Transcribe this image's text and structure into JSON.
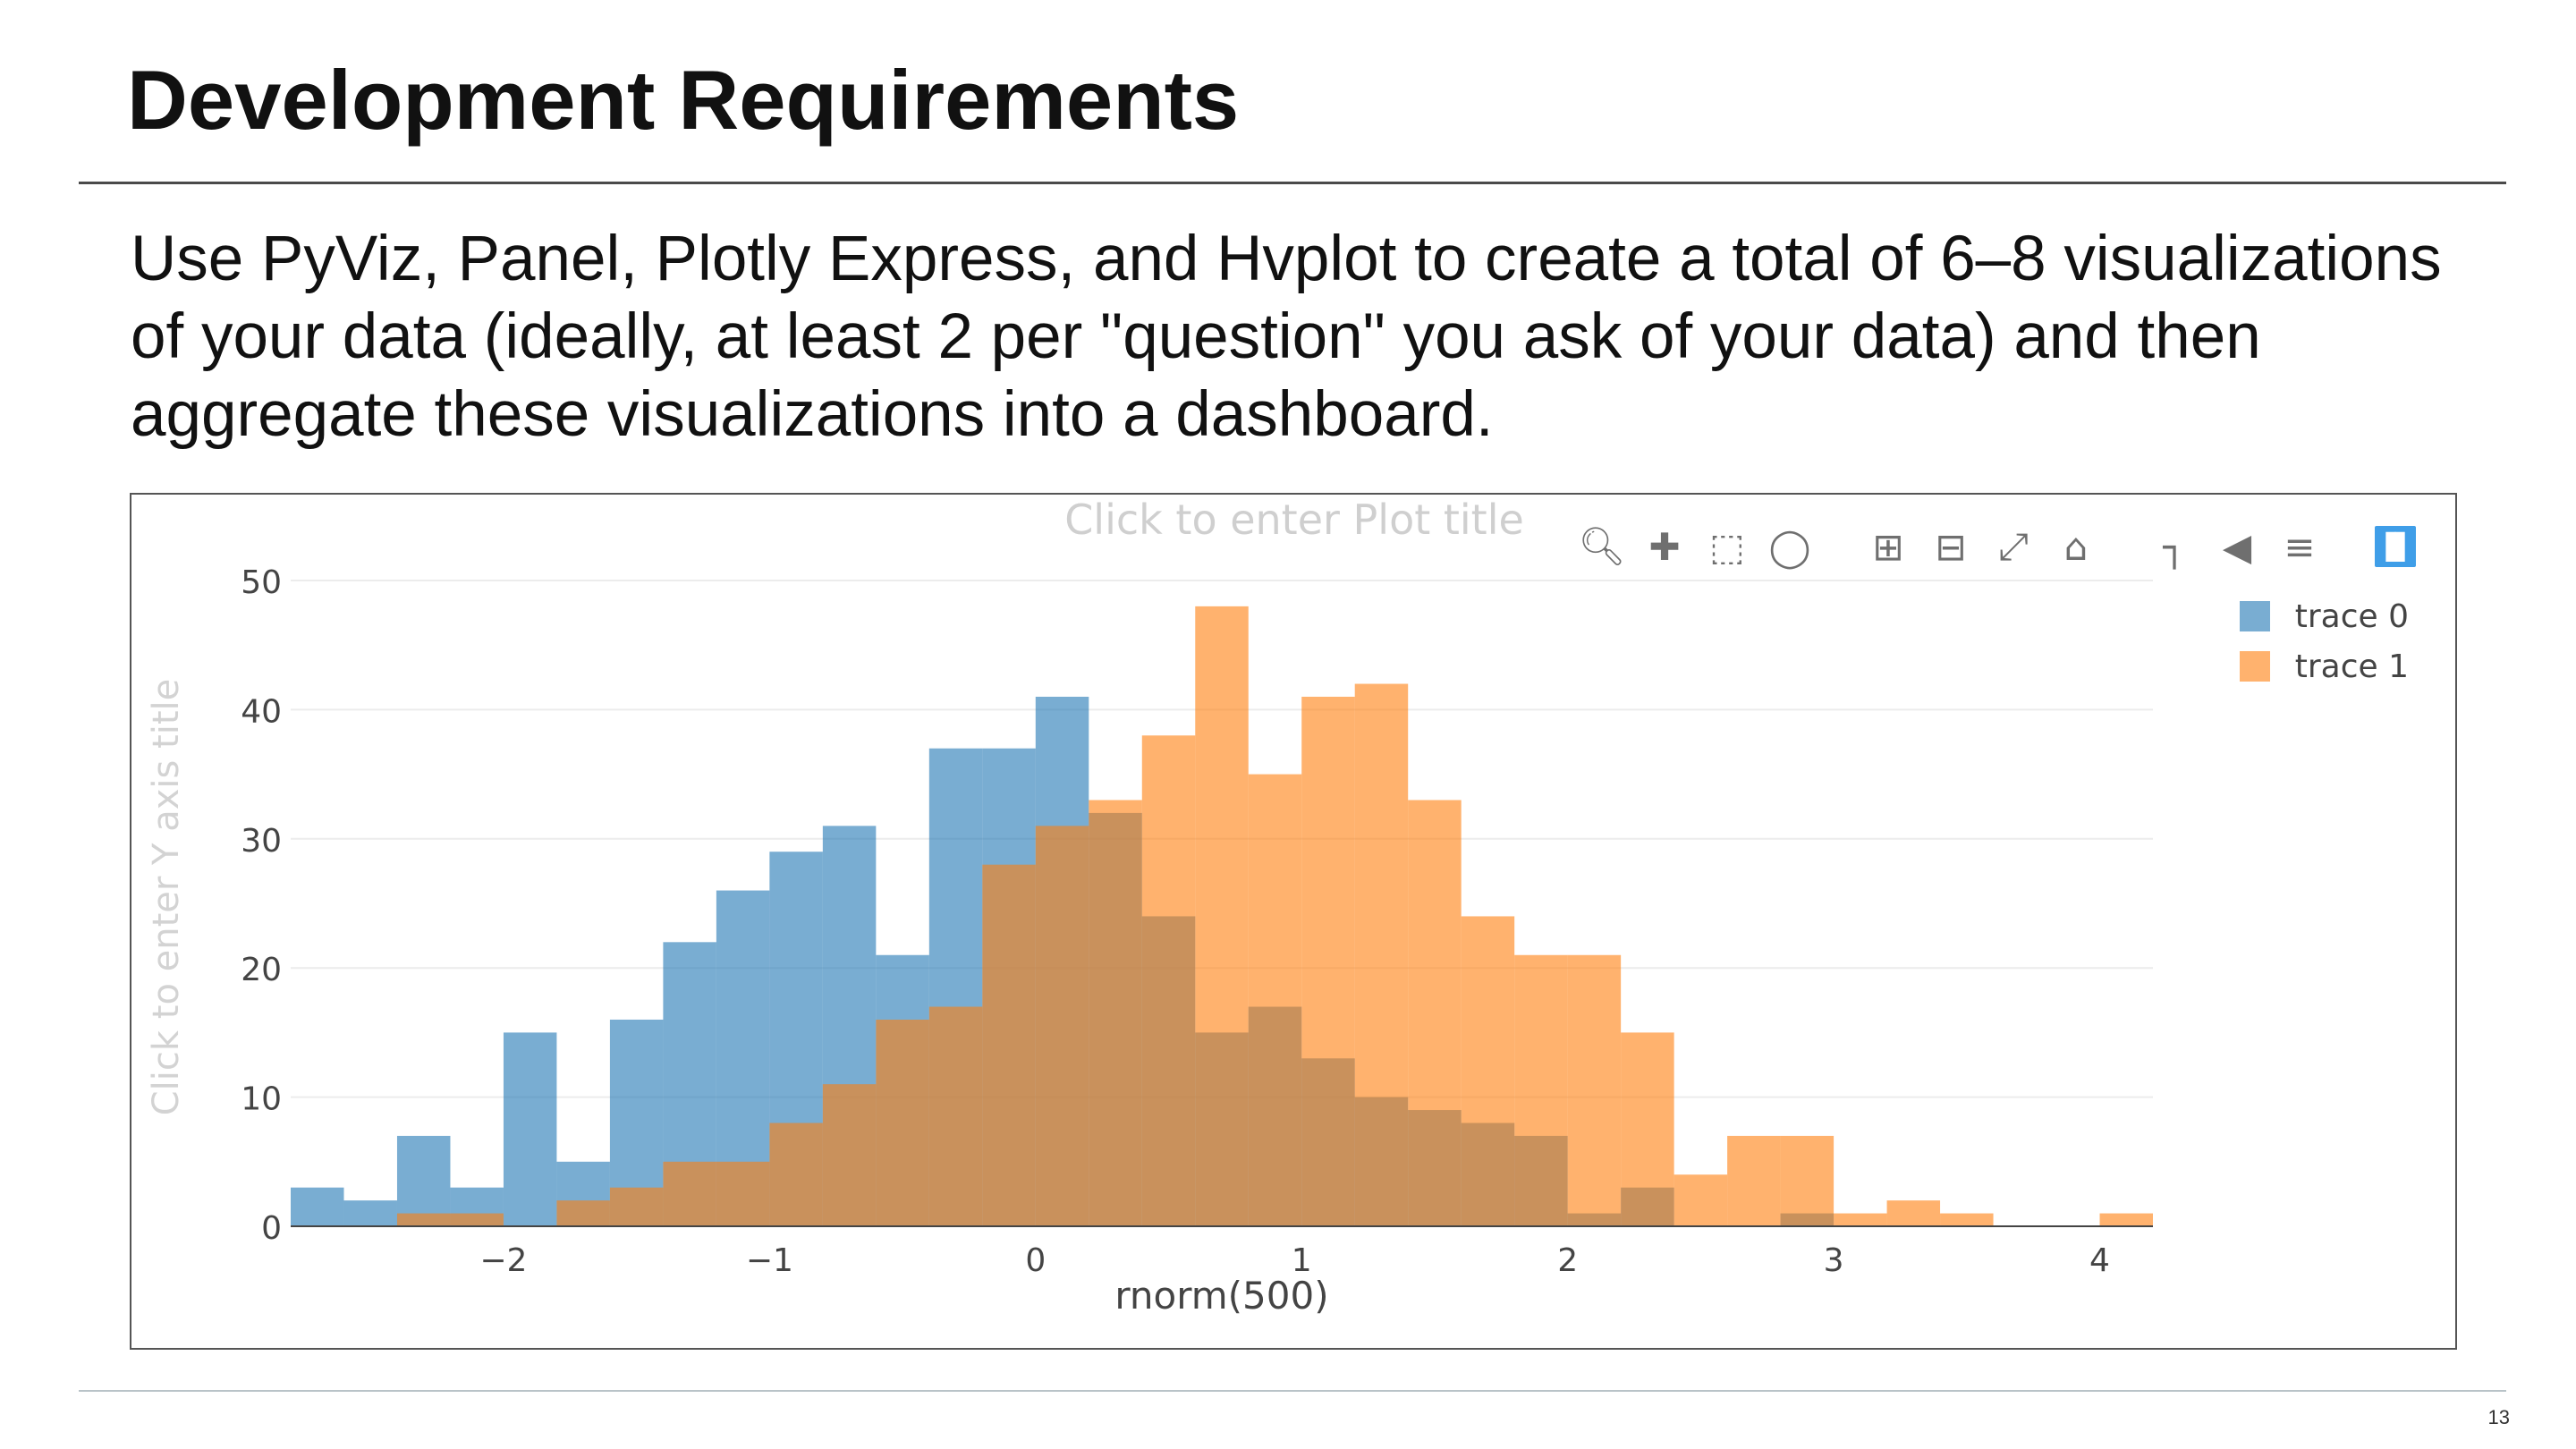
{
  "slide": {
    "title": "Development Requirements",
    "body": "Use PyViz, Panel, Plotly Express, and Hvplot to create a total of 6–8 visualizations of your data (ideally, at least 2 per \"question\" you ask of your data) and then aggregate these visualizations into a dashboard.",
    "page_number": "13"
  },
  "modebar": {
    "icons": [
      "zoom-icon",
      "pan-icon",
      "box-select-icon",
      "lasso-select-icon",
      "zoom-in-icon",
      "zoom-out-icon",
      "autoscale-icon",
      "reset-axes-icon",
      "spike-lines-icon",
      "hover-closest-icon",
      "hover-compare-icon",
      "plotly-logo-icon"
    ]
  },
  "chart_data": {
    "type": "bar",
    "barmode": "overlay",
    "title": "Click to enter Plot title",
    "xlabel": "rnorm(500)",
    "ylabel": "Click to enter Y axis title",
    "xlim": [
      -2.8,
      4.2
    ],
    "ylim": [
      0,
      50
    ],
    "xticks": [
      -2,
      -1,
      0,
      1,
      2,
      3,
      4
    ],
    "xtick_labels": [
      "−2",
      "−1",
      "0",
      "1",
      "2",
      "3",
      "4"
    ],
    "yticks": [
      0,
      10,
      20,
      30,
      40,
      50
    ],
    "ytick_labels": [
      "0",
      "10",
      "20",
      "30",
      "40",
      "50"
    ],
    "grid": true,
    "legend_position": "top-right",
    "series": [
      {
        "name": "trace 0",
        "color": "#1f77b4",
        "bin_start": -2.8,
        "bin_size": 0.2,
        "values": [
          3,
          2,
          7,
          3,
          15,
          5,
          16,
          22,
          26,
          29,
          31,
          21,
          37,
          37,
          41,
          32,
          24,
          15,
          17,
          13,
          10,
          9,
          8,
          7,
          1,
          3,
          0,
          0,
          1,
          0,
          0,
          0,
          0,
          0,
          0
        ]
      },
      {
        "name": "trace 1",
        "color": "#ff7f0e",
        "bin_start": -2.4,
        "bin_size": 0.2,
        "values": [
          1,
          1,
          0,
          2,
          3,
          5,
          5,
          8,
          11,
          16,
          17,
          28,
          31,
          33,
          38,
          48,
          35,
          41,
          42,
          33,
          24,
          21,
          21,
          15,
          4,
          7,
          7,
          1,
          2,
          1,
          0,
          0,
          1
        ]
      }
    ]
  }
}
